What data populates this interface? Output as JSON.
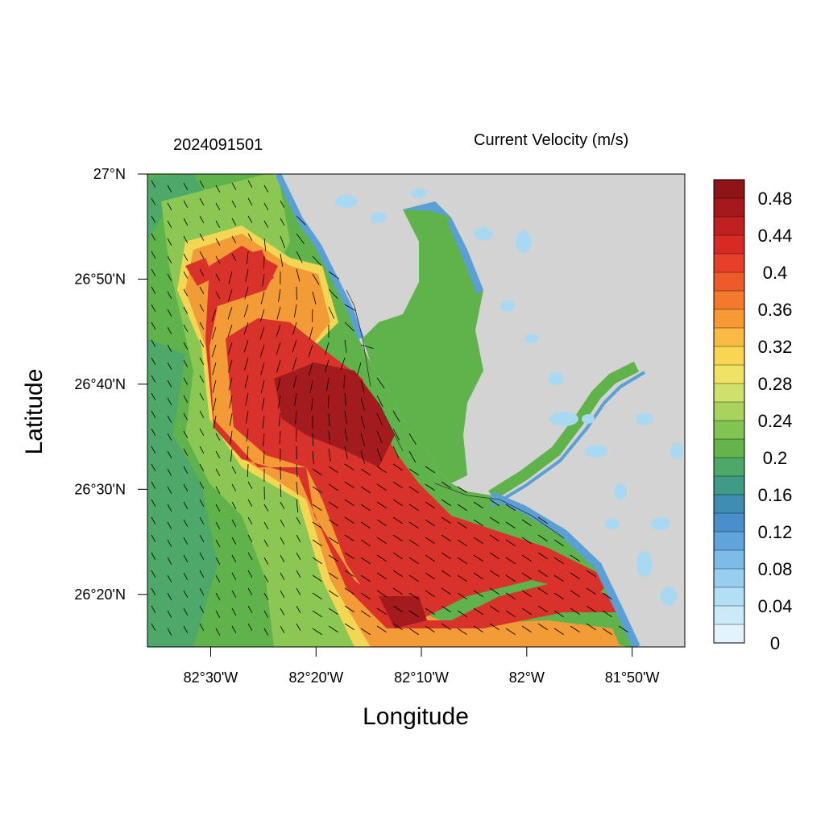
{
  "figure": {
    "date_label": "2024091501",
    "title": "Current Velocity (m/s)",
    "xlabel": "Longitude",
    "ylabel": "Latitude"
  },
  "axes": {
    "x_ticks": [
      {
        "value": -82.5,
        "label": "82°30'W"
      },
      {
        "value": -82.3333,
        "label": "82°20'W"
      },
      {
        "value": -82.1667,
        "label": "82°10'W"
      },
      {
        "value": -82.0,
        "label": "82°W"
      },
      {
        "value": -81.8333,
        "label": "81°50'W"
      }
    ],
    "y_ticks": [
      {
        "value": 27.0,
        "label": "27°N"
      },
      {
        "value": 26.8333,
        "label": "26°50'N"
      },
      {
        "value": 26.6667,
        "label": "26°40'N"
      },
      {
        "value": 26.5,
        "label": "26°30'N"
      },
      {
        "value": 26.3333,
        "label": "26°20'N"
      }
    ],
    "xlim": [
      -82.6,
      -81.75
    ],
    "ylim": [
      26.25,
      27.0
    ]
  },
  "colorbar": {
    "labels": [
      {
        "level": 0.48,
        "label": "0.48"
      },
      {
        "level": 0.44,
        "label": "0.44"
      },
      {
        "level": 0.4,
        "label": "0.4"
      },
      {
        "level": 0.36,
        "label": "0.36"
      },
      {
        "level": 0.32,
        "label": "0.32"
      },
      {
        "level": 0.28,
        "label": "0.28"
      },
      {
        "level": 0.24,
        "label": "0.24"
      },
      {
        "level": 0.2,
        "label": "0.2"
      },
      {
        "level": 0.16,
        "label": "0.16"
      },
      {
        "level": 0.12,
        "label": "0.12"
      },
      {
        "level": 0.08,
        "label": "0.08"
      },
      {
        "level": 0.04,
        "label": "0.04"
      },
      {
        "level": 0.0,
        "label": "0"
      }
    ],
    "colors": [
      "#8e1418",
      "#a5181c",
      "#c0201f",
      "#d72a23",
      "#e6402a",
      "#ee5b2a",
      "#f37a2c",
      "#f79a35",
      "#f9bb46",
      "#f8d553",
      "#efe264",
      "#cfe16c",
      "#a8d45e",
      "#82c451",
      "#63b54b",
      "#4ea86a",
      "#3d9b86",
      "#3f8db0",
      "#4a8fcb",
      "#5fa4db",
      "#7dbce8",
      "#98cff1",
      "#b3dff6",
      "#cce9f9",
      "#e3f3fd"
    ],
    "levels": [
      0.5,
      0.48,
      0.46,
      0.44,
      0.42,
      0.4,
      0.38,
      0.36,
      0.34,
      0.32,
      0.3,
      0.28,
      0.26,
      0.24,
      0.22,
      0.2,
      0.18,
      0.16,
      0.14,
      0.12,
      0.1,
      0.08,
      0.06,
      0.04,
      0.02,
      0.0
    ]
  },
  "map_colors": {
    "land": "#d3d3d3",
    "sea_green": "#5fb34a",
    "sea_light_green": "#8cc653",
    "sea_yellow": "#f3d654",
    "sea_orange": "#f39b37",
    "sea_red": "#d8322a",
    "sea_darkred": "#a31b1c",
    "shallow_blue": "#5aa0d6",
    "light_blue": "#a9d8f3"
  }
}
